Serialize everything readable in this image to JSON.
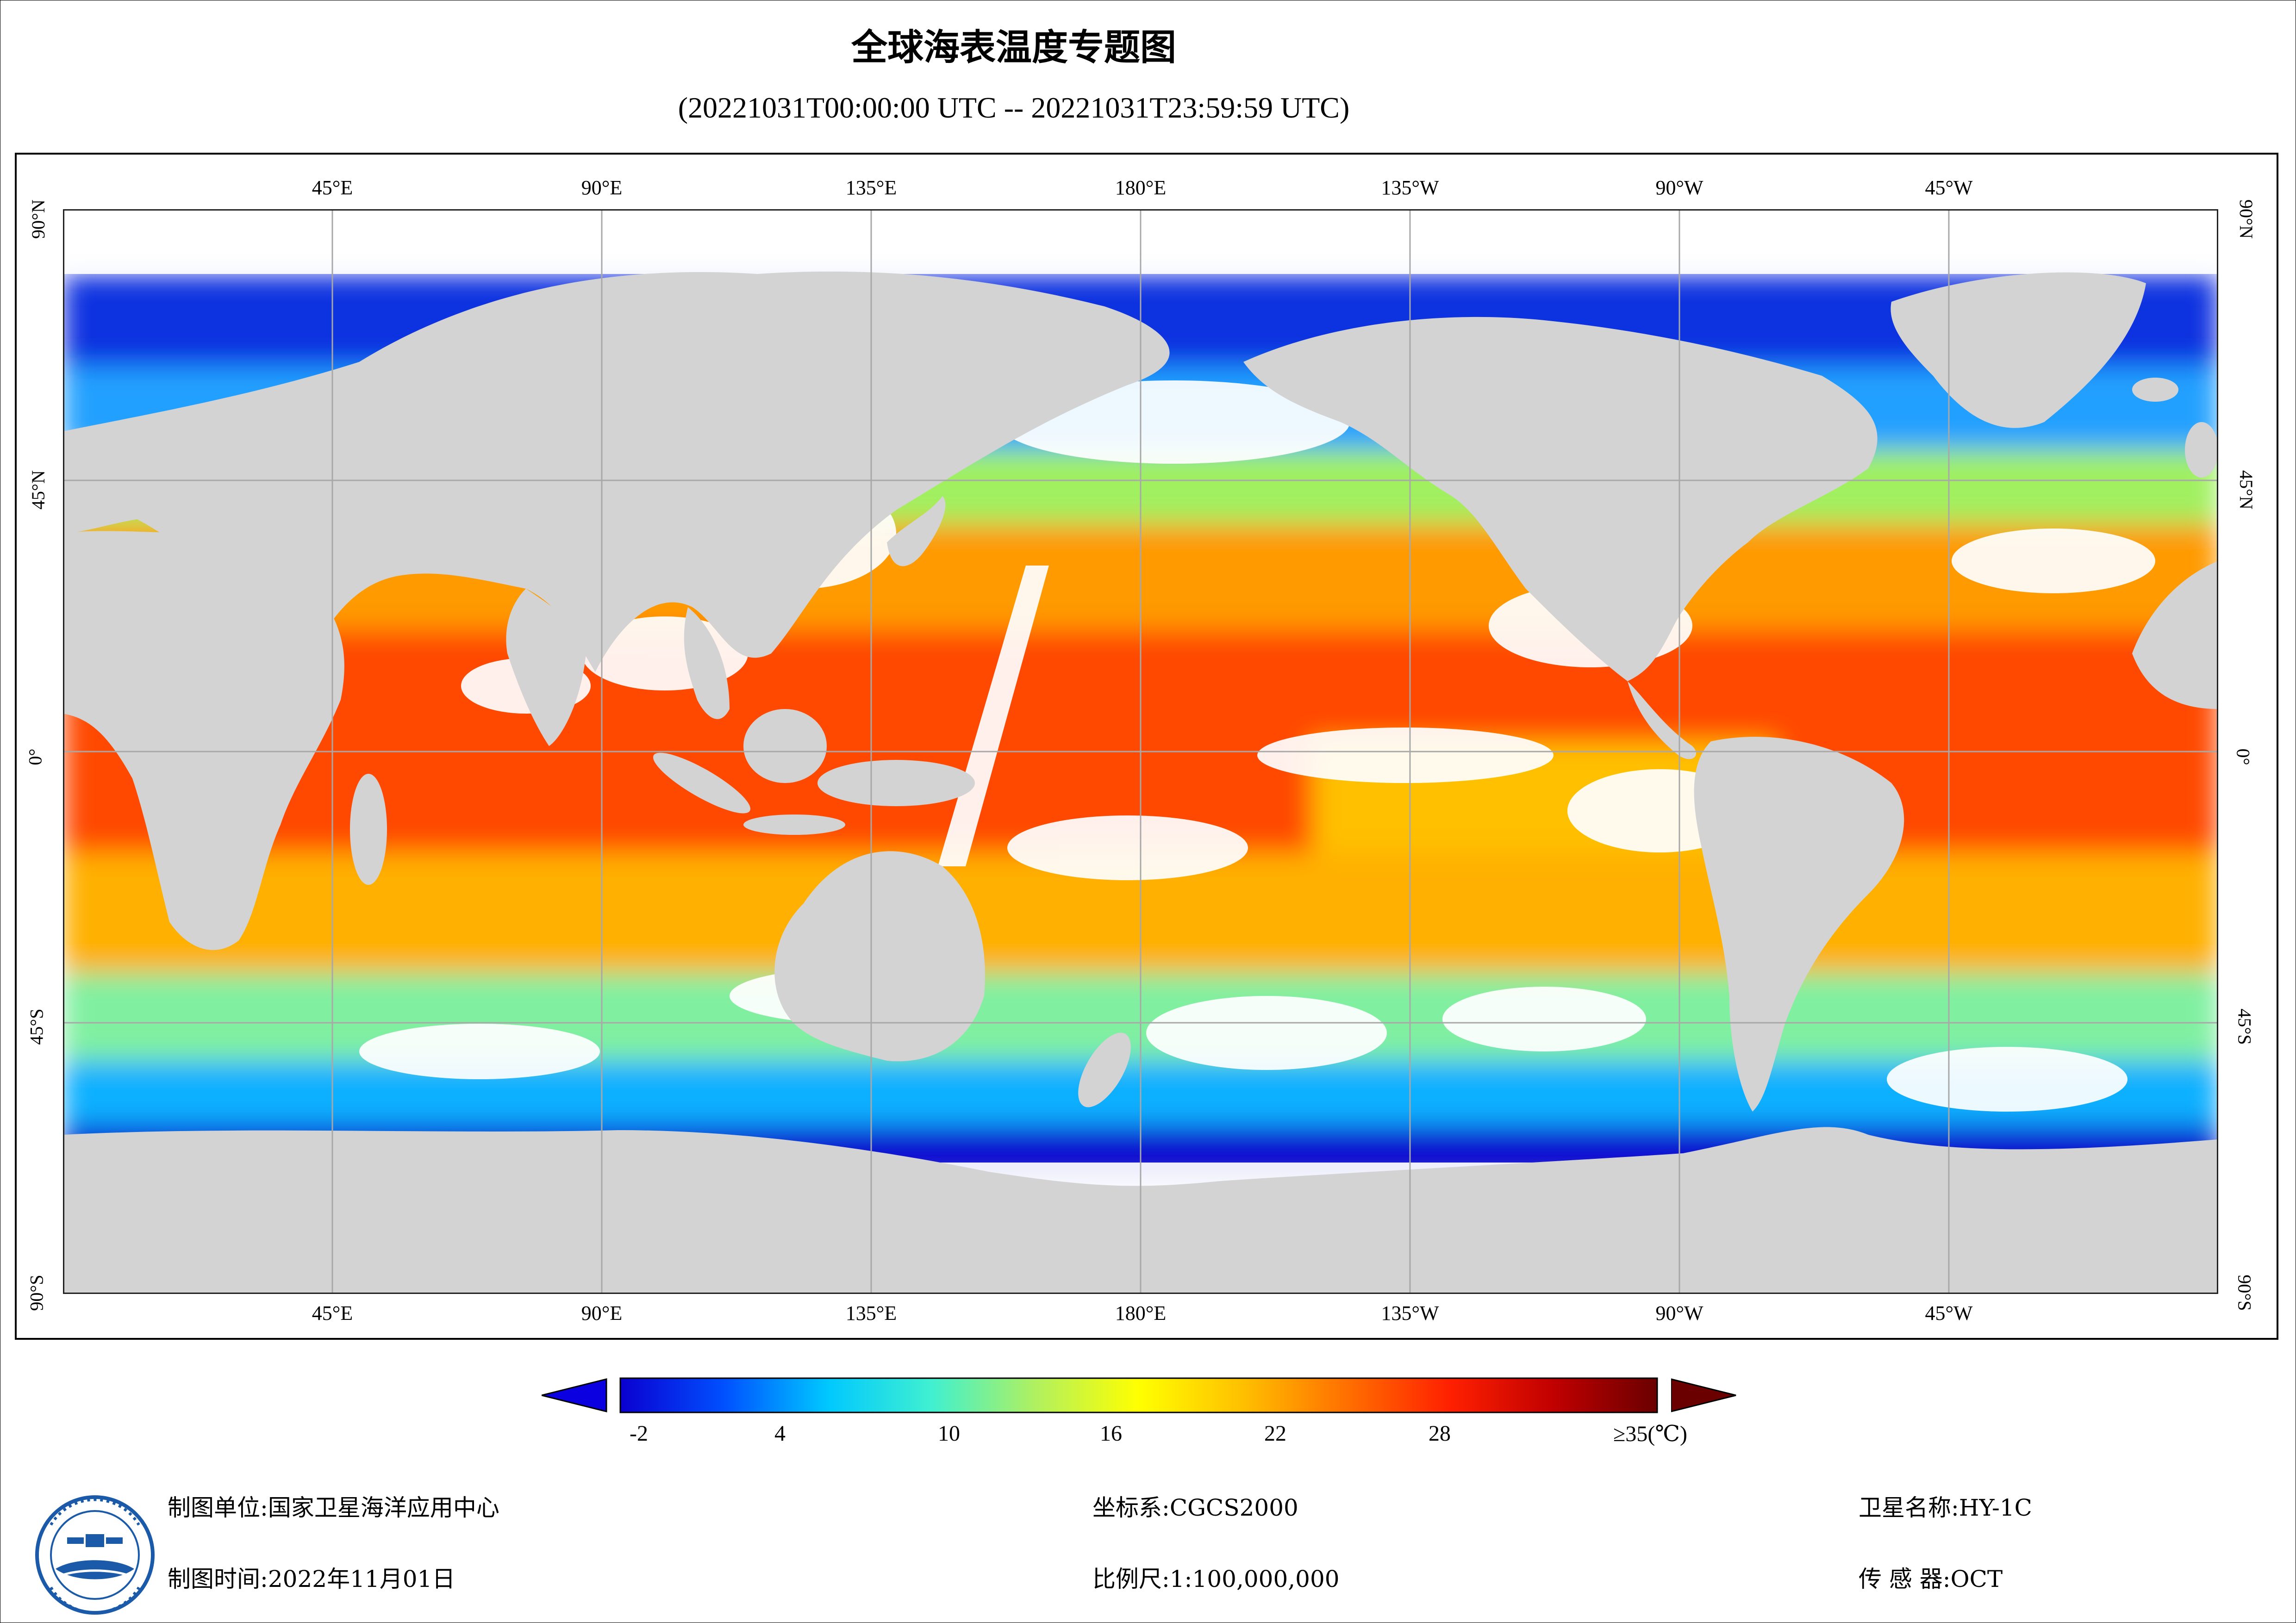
{
  "title": "全球海表温度专题图",
  "subtitle": "(20221031T00:00:00 UTC -- 20221031T23:59:59 UTC)",
  "lon_labels": [
    "45°E",
    "90°E",
    "135°E",
    "180°E",
    "135°W",
    "90°W",
    "45°W"
  ],
  "lat_labels": [
    "90°N",
    "45°N",
    "0°",
    "45°S",
    "90°S"
  ],
  "colorbar": {
    "ticks": [
      "-2",
      "4",
      "10",
      "16",
      "22",
      "28",
      "≥35(℃)"
    ],
    "min": -2,
    "max": 35,
    "colors": [
      "#0a00d0",
      "#0050ff",
      "#00c8ff",
      "#40f0d0",
      "#b0f060",
      "#ffff00",
      "#ffc000",
      "#ff7000",
      "#ff2000",
      "#c00000",
      "#6a0000"
    ],
    "under_color": "#0a00e0",
    "over_color": "#6a0000"
  },
  "colors": {
    "land": "#d3d3d3",
    "no_data": "#ffffff",
    "grid": "#a8a8a8"
  },
  "footer": {
    "org_label": "制图单位:",
    "org_value": "国家卫星海洋应用中心",
    "time_label": "制图时间:",
    "time_value": "2022年11月01日",
    "crs_label": "坐标系:",
    "crs_value": "CGCS2000",
    "scale_label": "比例尺:",
    "scale_value": "1:100,000,000",
    "satellite_label": "卫星名称:",
    "satellite_value": "HY-1C",
    "sensor_label": "传 感 器:",
    "sensor_value": "OCT"
  }
}
